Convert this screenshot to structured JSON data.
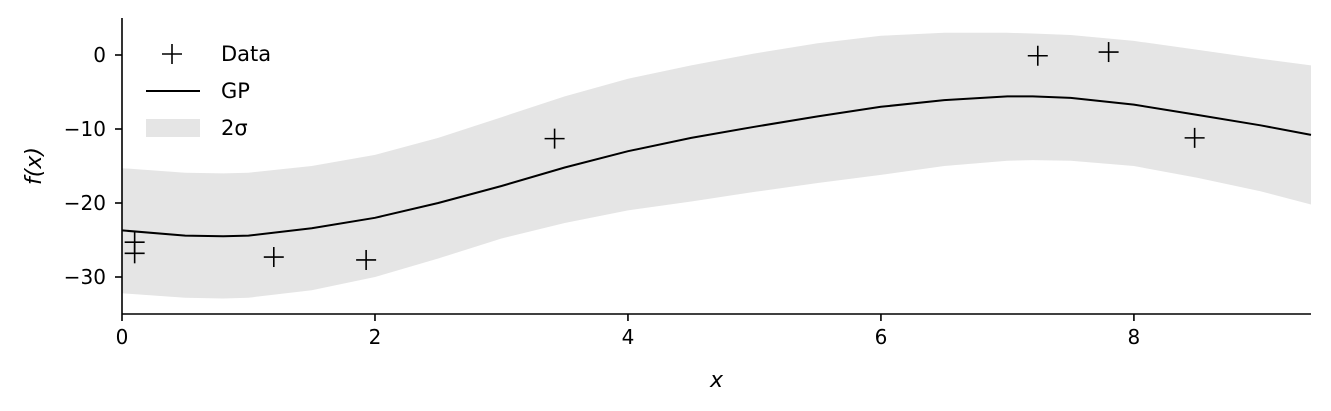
{
  "chart_data": {
    "type": "line",
    "xlabel": "x",
    "ylabel": "f(x)",
    "xlim": [
      0,
      9.4
    ],
    "ylim": [
      -35,
      5
    ],
    "x_ticks": [
      {
        "value": 0,
        "label": "0"
      },
      {
        "value": 2,
        "label": "2"
      },
      {
        "value": 4,
        "label": "4"
      },
      {
        "value": 6,
        "label": "6"
      },
      {
        "value": 8,
        "label": "8"
      }
    ],
    "y_ticks": [
      {
        "value": 0,
        "label": "0"
      },
      {
        "value": -10,
        "label": "−10"
      },
      {
        "value": -20,
        "label": "−20"
      },
      {
        "value": -30,
        "label": "−30"
      }
    ],
    "grid": false,
    "legend_position": "top-left",
    "legend": [
      {
        "label": "Data",
        "kind": "marker"
      },
      {
        "label": "GP",
        "kind": "line"
      },
      {
        "label": "2σ",
        "kind": "band"
      }
    ],
    "colors": {
      "data": "#000000",
      "line": "#000000",
      "band": "#e5e5e5",
      "axis": "#000000"
    },
    "series": [
      {
        "role": "data",
        "marker": "plus",
        "points": [
          {
            "x": 0.1,
            "y": -25.3
          },
          {
            "x": 0.1,
            "y": -26.8
          },
          {
            "x": 1.2,
            "y": -27.3
          },
          {
            "x": 1.93,
            "y": -27.7
          },
          {
            "x": 3.42,
            "y": -11.3
          },
          {
            "x": 7.24,
            "y": -0.1
          },
          {
            "x": 7.8,
            "y": 0.4
          },
          {
            "x": 8.48,
            "y": -11.2
          }
        ]
      },
      {
        "role": "mean",
        "x": [
          0,
          0.5,
          0.8,
          1.0,
          1.5,
          2.0,
          2.5,
          3.0,
          3.5,
          4.0,
          4.5,
          5.0,
          5.5,
          6.0,
          6.5,
          7.0,
          7.2,
          7.5,
          8.0,
          8.5,
          9.0,
          9.4
        ],
        "y": [
          -23.7,
          -24.4,
          -24.5,
          -24.4,
          -23.4,
          -22.0,
          -20.0,
          -17.7,
          -15.2,
          -13.0,
          -11.2,
          -9.7,
          -8.3,
          -7.0,
          -6.1,
          -5.6,
          -5.6,
          -5.8,
          -6.7,
          -8.1,
          -9.5,
          -10.8
        ]
      },
      {
        "role": "band",
        "x": [
          0,
          0.5,
          0.8,
          1.0,
          1.5,
          2.0,
          2.5,
          3.0,
          3.5,
          4.0,
          4.5,
          5.0,
          5.5,
          6.0,
          6.5,
          7.0,
          7.2,
          7.5,
          8.0,
          8.5,
          9.0,
          9.4
        ],
        "upper": [
          -15.3,
          -15.9,
          -16.0,
          -15.9,
          -15.0,
          -13.5,
          -11.2,
          -8.4,
          -5.6,
          -3.2,
          -1.4,
          0.2,
          1.6,
          2.6,
          3.0,
          3.0,
          2.9,
          2.7,
          1.9,
          0.7,
          -0.5,
          -1.4
        ],
        "lower": [
          -32.2,
          -32.8,
          -32.9,
          -32.8,
          -31.8,
          -30.0,
          -27.5,
          -24.8,
          -22.7,
          -21.0,
          -19.8,
          -18.5,
          -17.3,
          -16.2,
          -15.0,
          -14.3,
          -14.2,
          -14.3,
          -15.0,
          -16.6,
          -18.4,
          -20.2
        ]
      }
    ]
  }
}
